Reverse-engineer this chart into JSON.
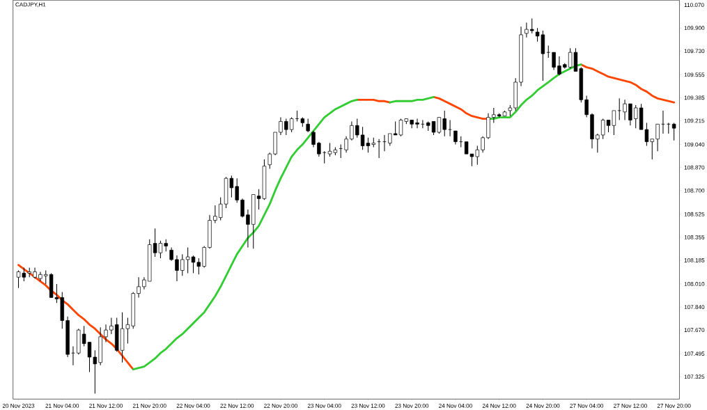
{
  "chart_data": {
    "type": "candlestick",
    "title": "CADJPY,H1",
    "categories": [
      "20 Nov 2023",
      null,
      null,
      null,
      null,
      null,
      null,
      null,
      "21 Nov 04:00",
      null,
      null,
      null,
      null,
      null,
      null,
      null,
      "21 Nov 12:00",
      null,
      null,
      null,
      null,
      null,
      null,
      null,
      "21 Nov 20:00",
      null,
      null,
      null,
      null,
      null,
      null,
      null,
      "22 Nov 04:00",
      null,
      null,
      null,
      null,
      null,
      null,
      null,
      "22 Nov 12:00",
      null,
      null,
      null,
      null,
      null,
      null,
      null,
      "22 Nov 20:00",
      null,
      null,
      null,
      null,
      null,
      null,
      null,
      "23 Nov 04:00",
      null,
      null,
      null,
      null,
      null,
      null,
      null,
      "23 Nov 12:00",
      null,
      null,
      null,
      null,
      null,
      null,
      null,
      "23 Nov 20:00",
      null,
      null,
      null,
      null,
      null,
      null,
      null,
      "24 Nov 04:00",
      null,
      null,
      null,
      null,
      null,
      null,
      null,
      "24 Nov 12:00",
      null,
      null,
      null,
      null,
      null,
      null,
      null,
      "24 Nov 20:00",
      null,
      null,
      null,
      null,
      null,
      null,
      null,
      "27 Nov 04:00",
      null,
      null,
      null,
      null,
      null,
      null,
      null,
      "27 Nov 12:00",
      null,
      null,
      null,
      null,
      null,
      null,
      null,
      "27 Nov 20:00"
    ],
    "ohlc": [
      [
        108.06,
        108.11,
        107.98,
        108.1
      ],
      [
        108.09,
        108.13,
        108.03,
        108.06
      ],
      [
        108.09,
        108.13,
        108.06,
        108.1
      ],
      [
        108.06,
        108.13,
        108.05,
        108.1
      ],
      [
        108.05,
        108.1,
        108.03,
        108.08
      ],
      [
        108.07,
        108.11,
        108.01,
        108.08
      ],
      [
        108.08,
        108.09,
        107.91,
        107.91
      ],
      [
        107.91,
        108.01,
        107.87,
        107.9
      ],
      [
        107.91,
        107.95,
        107.68,
        107.74
      ],
      [
        107.74,
        107.77,
        107.47,
        107.49
      ],
      [
        107.5,
        107.55,
        107.41,
        107.5
      ],
      [
        107.5,
        107.68,
        107.49,
        107.67
      ],
      [
        107.64,
        107.7,
        107.55,
        107.57
      ],
      [
        107.58,
        107.58,
        107.36,
        107.47
      ],
      [
        107.47,
        107.52,
        107.2,
        107.42
      ],
      [
        107.43,
        107.69,
        107.41,
        107.62
      ],
      [
        107.62,
        107.71,
        107.58,
        107.67
      ],
      [
        107.67,
        107.76,
        107.64,
        107.7
      ],
      [
        107.71,
        107.76,
        107.51,
        107.52
      ],
      [
        107.52,
        107.8,
        107.43,
        107.68
      ],
      [
        107.68,
        107.76,
        107.57,
        107.71
      ],
      [
        107.7,
        107.95,
        107.68,
        107.94
      ],
      [
        107.94,
        108.06,
        107.91,
        107.99
      ],
      [
        107.99,
        108.06,
        107.97,
        108.04
      ],
      [
        108.03,
        108.34,
        108.03,
        108.3
      ],
      [
        108.31,
        108.42,
        108.21,
        108.24
      ],
      [
        108.24,
        108.33,
        108.2,
        108.31
      ],
      [
        108.31,
        108.34,
        108.25,
        108.29
      ],
      [
        108.26,
        108.28,
        108.18,
        108.19
      ],
      [
        108.19,
        108.22,
        108.03,
        108.11
      ],
      [
        108.11,
        108.23,
        108.07,
        108.19
      ],
      [
        108.19,
        108.28,
        108.09,
        108.21
      ],
      [
        108.21,
        108.22,
        108.09,
        108.17
      ],
      [
        108.17,
        108.2,
        108.08,
        108.14
      ],
      [
        108.14,
        108.29,
        108.13,
        108.28
      ],
      [
        108.28,
        108.52,
        108.27,
        108.48
      ],
      [
        108.48,
        108.59,
        108.46,
        108.51
      ],
      [
        108.5,
        108.65,
        108.48,
        108.6
      ],
      [
        108.6,
        108.8,
        108.57,
        108.79
      ],
      [
        108.79,
        108.81,
        108.65,
        108.72
      ],
      [
        108.73,
        108.79,
        108.61,
        108.63
      ],
      [
        108.63,
        108.64,
        108.5,
        108.51
      ],
      [
        108.52,
        108.56,
        108.28,
        108.45
      ],
      [
        108.45,
        108.67,
        108.27,
        108.67
      ],
      [
        108.66,
        108.71,
        108.56,
        108.64
      ],
      [
        108.64,
        108.93,
        108.63,
        108.88
      ],
      [
        108.89,
        108.98,
        108.86,
        108.97
      ],
      [
        108.97,
        109.13,
        108.96,
        109.13
      ],
      [
        109.13,
        109.24,
        109.11,
        109.21
      ],
      [
        109.21,
        109.23,
        109.11,
        109.15
      ],
      [
        109.15,
        109.24,
        109.13,
        109.23
      ],
      [
        109.23,
        109.29,
        109.21,
        109.23
      ],
      [
        109.23,
        109.24,
        109.17,
        109.2
      ],
      [
        109.19,
        109.23,
        109.13,
        109.14
      ],
      [
        109.13,
        109.14,
        109.02,
        109.04
      ],
      [
        109.05,
        109.06,
        108.95,
        108.97
      ],
      [
        108.98,
        108.99,
        108.9,
        108.98
      ],
      [
        108.97,
        109.05,
        108.95,
        108.99
      ],
      [
        108.98,
        109.02,
        108.96,
        109.0
      ],
      [
        109.01,
        109.04,
        108.94,
        109.01
      ],
      [
        109.0,
        109.1,
        108.98,
        109.08
      ],
      [
        109.08,
        109.21,
        109.07,
        109.18
      ],
      [
        109.18,
        109.23,
        109.09,
        109.11
      ],
      [
        109.11,
        109.17,
        109.0,
        109.03
      ],
      [
        109.05,
        109.09,
        108.98,
        109.03
      ],
      [
        109.04,
        109.09,
        109.02,
        109.05
      ],
      [
        109.06,
        109.08,
        108.94,
        109.06
      ],
      [
        109.06,
        109.11,
        108.99,
        109.06
      ],
      [
        109.05,
        109.12,
        109.03,
        109.12
      ],
      [
        109.12,
        109.21,
        109.11,
        109.11
      ],
      [
        109.11,
        109.23,
        109.1,
        109.22
      ],
      [
        109.21,
        109.23,
        109.19,
        109.23
      ],
      [
        109.22,
        109.22,
        109.16,
        109.19
      ],
      [
        109.2,
        109.23,
        109.16,
        109.19
      ],
      [
        109.19,
        109.22,
        109.16,
        109.19
      ],
      [
        109.2,
        109.21,
        109.14,
        109.18
      ],
      [
        109.21,
        109.21,
        109.11,
        109.13
      ],
      [
        109.13,
        109.24,
        109.12,
        109.24
      ],
      [
        109.23,
        109.29,
        109.1,
        109.15
      ],
      [
        109.15,
        109.22,
        109.1,
        109.15
      ],
      [
        109.14,
        109.14,
        109.04,
        109.06
      ],
      [
        109.06,
        109.1,
        109.02,
        109.06
      ],
      [
        109.06,
        109.06,
        108.97,
        108.97
      ],
      [
        108.97,
        108.97,
        108.88,
        108.95
      ],
      [
        108.95,
        109.03,
        108.89,
        109.0
      ],
      [
        109.0,
        109.1,
        108.98,
        109.09
      ],
      [
        109.09,
        109.27,
        109.08,
        109.24
      ],
      [
        109.24,
        109.31,
        109.2,
        109.26
      ],
      [
        109.26,
        109.27,
        109.24,
        109.25
      ],
      [
        109.25,
        109.29,
        109.25,
        109.28
      ],
      [
        109.29,
        109.33,
        109.25,
        109.31
      ],
      [
        109.31,
        109.53,
        109.29,
        109.5
      ],
      [
        109.5,
        109.91,
        109.47,
        109.85
      ],
      [
        109.86,
        109.94,
        109.83,
        109.89
      ],
      [
        109.89,
        109.97,
        109.86,
        109.88
      ],
      [
        109.87,
        109.9,
        109.8,
        109.84
      ],
      [
        109.85,
        109.88,
        109.51,
        109.71
      ],
      [
        109.72,
        109.77,
        109.68,
        109.72
      ],
      [
        109.72,
        109.72,
        109.59,
        109.61
      ],
      [
        109.62,
        109.69,
        109.55,
        109.56
      ],
      [
        109.63,
        109.64,
        109.6,
        109.61
      ],
      [
        109.61,
        109.75,
        109.6,
        109.72
      ],
      [
        109.72,
        109.75,
        109.58,
        109.58
      ],
      [
        109.6,
        109.61,
        109.35,
        109.37
      ],
      [
        109.37,
        109.4,
        109.24,
        109.26
      ],
      [
        109.26,
        109.27,
        109.01,
        109.08
      ],
      [
        109.08,
        109.12,
        108.98,
        109.11
      ],
      [
        109.11,
        109.23,
        109.08,
        109.22
      ],
      [
        109.22,
        109.22,
        109.13,
        109.18
      ],
      [
        109.18,
        109.29,
        109.11,
        109.29
      ],
      [
        109.29,
        109.38,
        109.22,
        109.29
      ],
      [
        109.28,
        109.37,
        109.22,
        109.34
      ],
      [
        109.34,
        109.34,
        109.18,
        109.22
      ],
      [
        109.23,
        109.33,
        109.16,
        109.31
      ],
      [
        109.31,
        109.34,
        109.15,
        109.15
      ],
      [
        109.15,
        109.2,
        109.03,
        109.06
      ],
      [
        109.06,
        109.08,
        108.93,
        109.08
      ],
      [
        109.08,
        109.19,
        108.99,
        109.19
      ],
      [
        109.19,
        109.29,
        109.12,
        109.19
      ],
      [
        109.19,
        109.2,
        109.12,
        109.19
      ],
      [
        109.19,
        109.2,
        109.07,
        109.16
      ]
    ],
    "series": [
      {
        "type": "line",
        "color": "#ff4500",
        "values": [
          108.15,
          108.12,
          108.09,
          108.06,
          108.03,
          108.0,
          107.96,
          107.93,
          107.89,
          107.86,
          107.82,
          107.78,
          107.75,
          107.71,
          107.68,
          107.64,
          107.6,
          107.57,
          107.53,
          107.48,
          107.43,
          107.38,
          null,
          null,
          null,
          null,
          null,
          null,
          null,
          null,
          null,
          null,
          null,
          null,
          null,
          null,
          null,
          null,
          null,
          null,
          null,
          null,
          null,
          null,
          null,
          null,
          null,
          null,
          null,
          null,
          null,
          null,
          null,
          null,
          null,
          null,
          null,
          null,
          null,
          null,
          null,
          null,
          109.37,
          109.37,
          109.37,
          109.37,
          109.36,
          109.36,
          109.35,
          null,
          null,
          null,
          null,
          null,
          null,
          null,
          109.39,
          109.38,
          109.36,
          109.34,
          109.32,
          109.3,
          109.27,
          109.25,
          109.24,
          109.23,
          109.23,
          null,
          null,
          null,
          null,
          null,
          null,
          null,
          null,
          null,
          null,
          null,
          null,
          null,
          null,
          null,
          null,
          109.63,
          109.61,
          109.6,
          109.58,
          109.56,
          109.54,
          109.53,
          109.52,
          109.51,
          109.5,
          109.48,
          109.45,
          109.43,
          109.4,
          109.38,
          109.37,
          109.36,
          109.35
        ]
      },
      {
        "type": "line",
        "color": "#32cd32",
        "values": [
          null,
          null,
          null,
          null,
          null,
          null,
          null,
          null,
          null,
          null,
          null,
          null,
          null,
          null,
          null,
          null,
          null,
          null,
          null,
          null,
          null,
          107.38,
          107.39,
          107.4,
          107.43,
          107.46,
          107.5,
          107.53,
          107.57,
          107.61,
          107.64,
          107.68,
          107.72,
          107.76,
          107.8,
          107.86,
          107.92,
          107.99,
          108.07,
          108.15,
          108.23,
          108.29,
          108.35,
          108.39,
          108.44,
          108.52,
          108.6,
          108.7,
          108.79,
          108.87,
          108.95,
          109.0,
          109.04,
          109.09,
          109.14,
          109.19,
          109.24,
          109.27,
          109.3,
          109.32,
          109.34,
          109.36,
          109.37,
          null,
          null,
          null,
          null,
          null,
          109.35,
          109.36,
          109.36,
          109.36,
          109.36,
          109.37,
          109.37,
          109.38,
          109.39,
          null,
          null,
          null,
          null,
          null,
          null,
          null,
          null,
          null,
          109.23,
          109.23,
          109.24,
          109.24,
          109.24,
          109.28,
          109.33,
          109.37,
          109.4,
          109.44,
          109.47,
          109.5,
          109.53,
          109.56,
          109.58,
          109.6,
          109.62,
          109.63,
          null,
          null,
          null,
          null,
          null,
          null,
          null,
          null,
          null,
          null,
          null,
          null,
          null,
          null,
          null,
          null,
          null
        ]
      }
    ],
    "ylim": [
      107.16,
      110.105
    ],
    "yticks": [
      {
        "value": 107.325,
        "label": "107.325"
      },
      {
        "value": 107.495,
        "label": "107.495"
      },
      {
        "value": 107.67,
        "label": "107.670"
      },
      {
        "value": 107.84,
        "label": "107.840"
      },
      {
        "value": 108.01,
        "label": "108.010"
      },
      {
        "value": 108.185,
        "label": "108.185"
      },
      {
        "value": 108.355,
        "label": "108.355"
      },
      {
        "value": 108.525,
        "label": "108.525"
      },
      {
        "value": 108.7,
        "label": "108.700"
      },
      {
        "value": 108.87,
        "label": "108.870"
      },
      {
        "value": 109.04,
        "label": "109.040"
      },
      {
        "value": 109.215,
        "label": "109.215"
      },
      {
        "value": 109.385,
        "label": "109.385"
      },
      {
        "value": 109.555,
        "label": "109.555"
      },
      {
        "value": 109.73,
        "label": "109.730"
      },
      {
        "value": 109.9,
        "label": "109.900"
      },
      {
        "value": 110.07,
        "label": "110.070"
      }
    ]
  }
}
